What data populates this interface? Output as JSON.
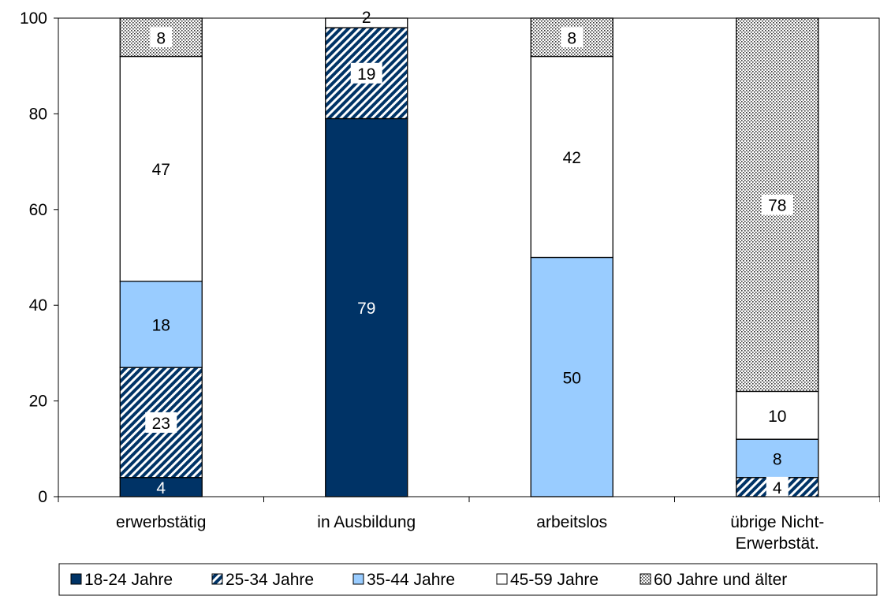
{
  "chart_data": {
    "type": "bar",
    "stacked": true,
    "categories": [
      [
        "erwerbstätig"
      ],
      [
        "in Ausbildung"
      ],
      [
        "arbeitslos"
      ],
      [
        "übrige Nicht-",
        "Erwerbstät."
      ]
    ],
    "series": [
      {
        "name": "18-24 Jahre",
        "values": [
          4,
          79,
          0,
          0
        ],
        "color": "#003366",
        "pattern": "solid"
      },
      {
        "name": "25-34 Jahre",
        "values": [
          23,
          19,
          0,
          4
        ],
        "color": "#003366",
        "pattern": "diagonal"
      },
      {
        "name": "35-44 Jahre",
        "values": [
          18,
          0,
          50,
          8
        ],
        "color": "#99ccff",
        "pattern": "solid"
      },
      {
        "name": "45-59 Jahre",
        "values": [
          47,
          2,
          42,
          10
        ],
        "color": "#ffffff",
        "pattern": "solid"
      },
      {
        "name": "60 Jahre und älter",
        "values": [
          8,
          0,
          8,
          78
        ],
        "color": "#333333",
        "pattern": "dots"
      }
    ],
    "ylim": [
      0,
      100
    ],
    "yticks": [
      0,
      20,
      40,
      60,
      80,
      100
    ],
    "grid": false,
    "legend_position": "bottom"
  }
}
